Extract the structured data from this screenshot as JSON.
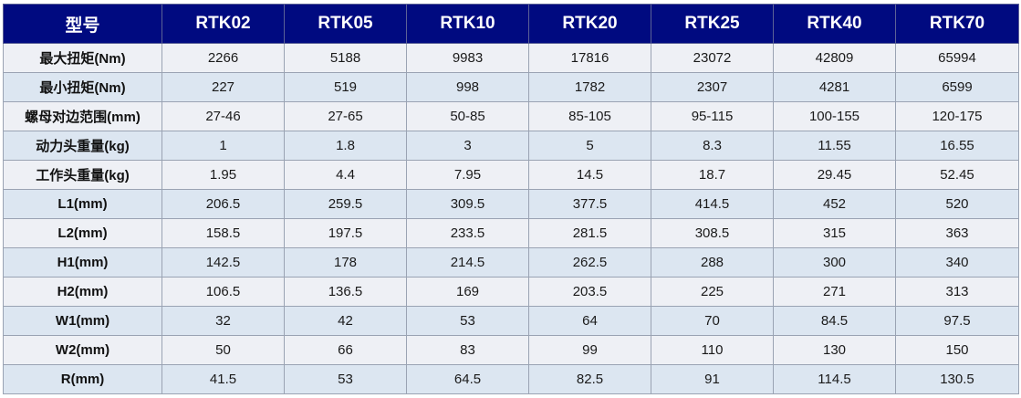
{
  "header": {
    "label": "型号",
    "models": [
      "RTK02",
      "RTK05",
      "RTK10",
      "RTK20",
      "RTK25",
      "RTK40",
      "RTK70"
    ]
  },
  "rows": [
    {
      "label": "最大扭矩(Nm)",
      "values": [
        "2266",
        "5188",
        "9983",
        "17816",
        "23072",
        "42809",
        "65994"
      ]
    },
    {
      "label": "最小扭矩(Nm)",
      "values": [
        "227",
        "519",
        "998",
        "1782",
        "2307",
        "4281",
        "6599"
      ]
    },
    {
      "label": "螺母对边范围(mm)",
      "values": [
        "27-46",
        "27-65",
        "50-85",
        "85-105",
        "95-115",
        "100-155",
        "120-175"
      ]
    },
    {
      "label": "动力头重量(kg)",
      "values": [
        "1",
        "1.8",
        "3",
        "5",
        "8.3",
        "11.55",
        "16.55"
      ]
    },
    {
      "label": "工作头重量(kg)",
      "values": [
        "1.95",
        "4.4",
        "7.95",
        "14.5",
        "18.7",
        "29.45",
        "52.45"
      ]
    },
    {
      "label": "L1(mm)",
      "values": [
        "206.5",
        "259.5",
        "309.5",
        "377.5",
        "414.5",
        "452",
        "520"
      ]
    },
    {
      "label": "L2(mm)",
      "values": [
        "158.5",
        "197.5",
        "233.5",
        "281.5",
        "308.5",
        "315",
        "363"
      ]
    },
    {
      "label": "H1(mm)",
      "values": [
        "142.5",
        "178",
        "214.5",
        "262.5",
        "288",
        "300",
        "340"
      ]
    },
    {
      "label": "H2(mm)",
      "values": [
        "106.5",
        "136.5",
        "169",
        "203.5",
        "225",
        "271",
        "313"
      ]
    },
    {
      "label": "W1(mm)",
      "values": [
        "32",
        "42",
        "53",
        "64",
        "70",
        "84.5",
        "97.5"
      ]
    },
    {
      "label": "W2(mm)",
      "values": [
        "50",
        "66",
        "83",
        "99",
        "110",
        "130",
        "150"
      ]
    },
    {
      "label": "R(mm)",
      "values": [
        "41.5",
        "53",
        "64.5",
        "82.5",
        "91",
        "114.5",
        "130.5"
      ]
    }
  ],
  "colors": {
    "header_bg": "#000a80",
    "header_text": "#ffffff",
    "row_odd_bg": "#eef0f5",
    "row_even_bg": "#dce6f1",
    "grid_line": "#9aa3b3"
  }
}
